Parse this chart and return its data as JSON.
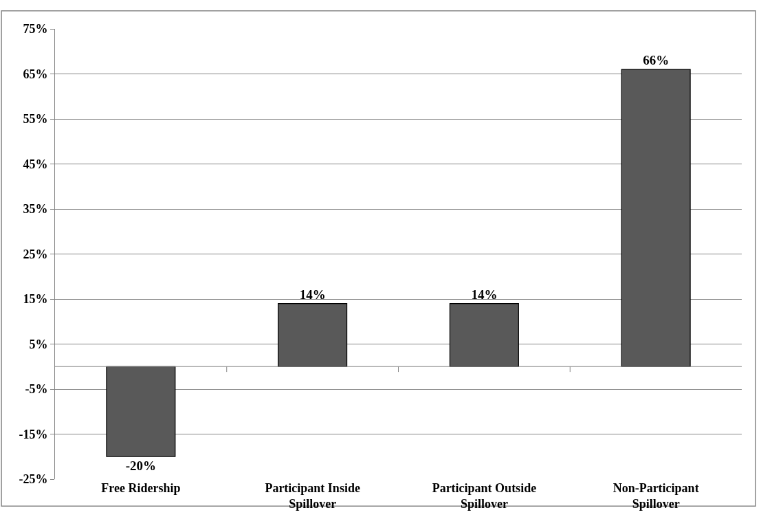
{
  "chart_data": {
    "type": "bar",
    "categories": [
      "Free Ridership",
      "Participant Inside Spillover",
      "Participant Outside Spillover",
      "Non-Participant Spillover"
    ],
    "values": [
      -20,
      14,
      14,
      66
    ],
    "value_labels": [
      "-20%",
      "14%",
      "14%",
      "66%"
    ],
    "color": "#595959",
    "ylim": [
      -25,
      75
    ],
    "yticks": [
      {
        "value": -25,
        "label": "-25%"
      },
      {
        "value": -15,
        "label": "-15%"
      },
      {
        "value": -5,
        "label": "-5%"
      },
      {
        "value": 5,
        "label": "5%"
      },
      {
        "value": 15,
        "label": "15%"
      },
      {
        "value": 25,
        "label": "25%"
      },
      {
        "value": 35,
        "label": "35%"
      },
      {
        "value": 45,
        "label": "45%"
      },
      {
        "value": 55,
        "label": "55%"
      },
      {
        "value": 65,
        "label": "65%"
      },
      {
        "value": 75,
        "label": "75%"
      }
    ],
    "grid": "y"
  }
}
